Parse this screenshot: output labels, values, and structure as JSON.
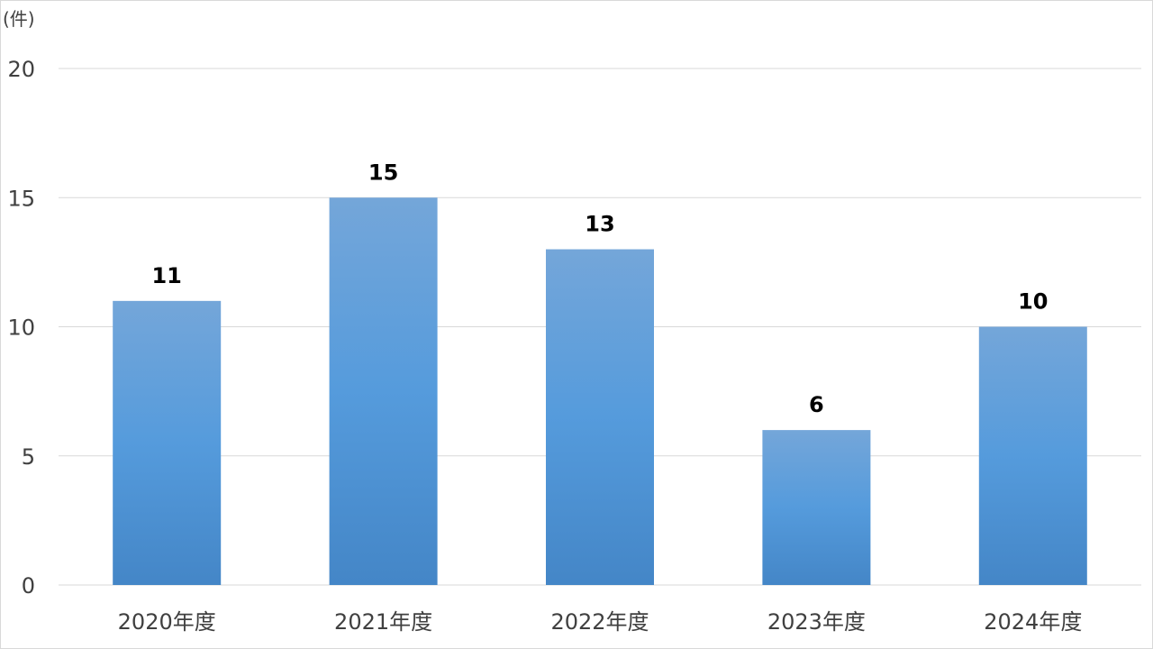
{
  "chart_data": {
    "type": "bar",
    "title": "",
    "xlabel": "",
    "ylabel": "",
    "unit_label": "(件)",
    "categories": [
      "2020年度",
      "2021年度",
      "2022年度",
      "2023年度",
      "2024年度"
    ],
    "values": [
      11,
      15,
      13,
      6,
      10
    ],
    "data_labels": [
      "11",
      "15",
      "13",
      "6",
      "10"
    ],
    "ylim": [
      0,
      20
    ],
    "yticks": [
      0,
      5,
      10,
      15,
      20
    ],
    "ytick_labels": [
      "0",
      "5",
      "10",
      "15",
      "20"
    ],
    "grid": true,
    "legend": "none",
    "colors": {
      "bar_top": "#74a6d9",
      "bar_mid": "#559bdc",
      "bar_bottom": "#4486c7",
      "grid": "#d9d9d9",
      "text": "#404040",
      "data_label": "#000000"
    }
  }
}
